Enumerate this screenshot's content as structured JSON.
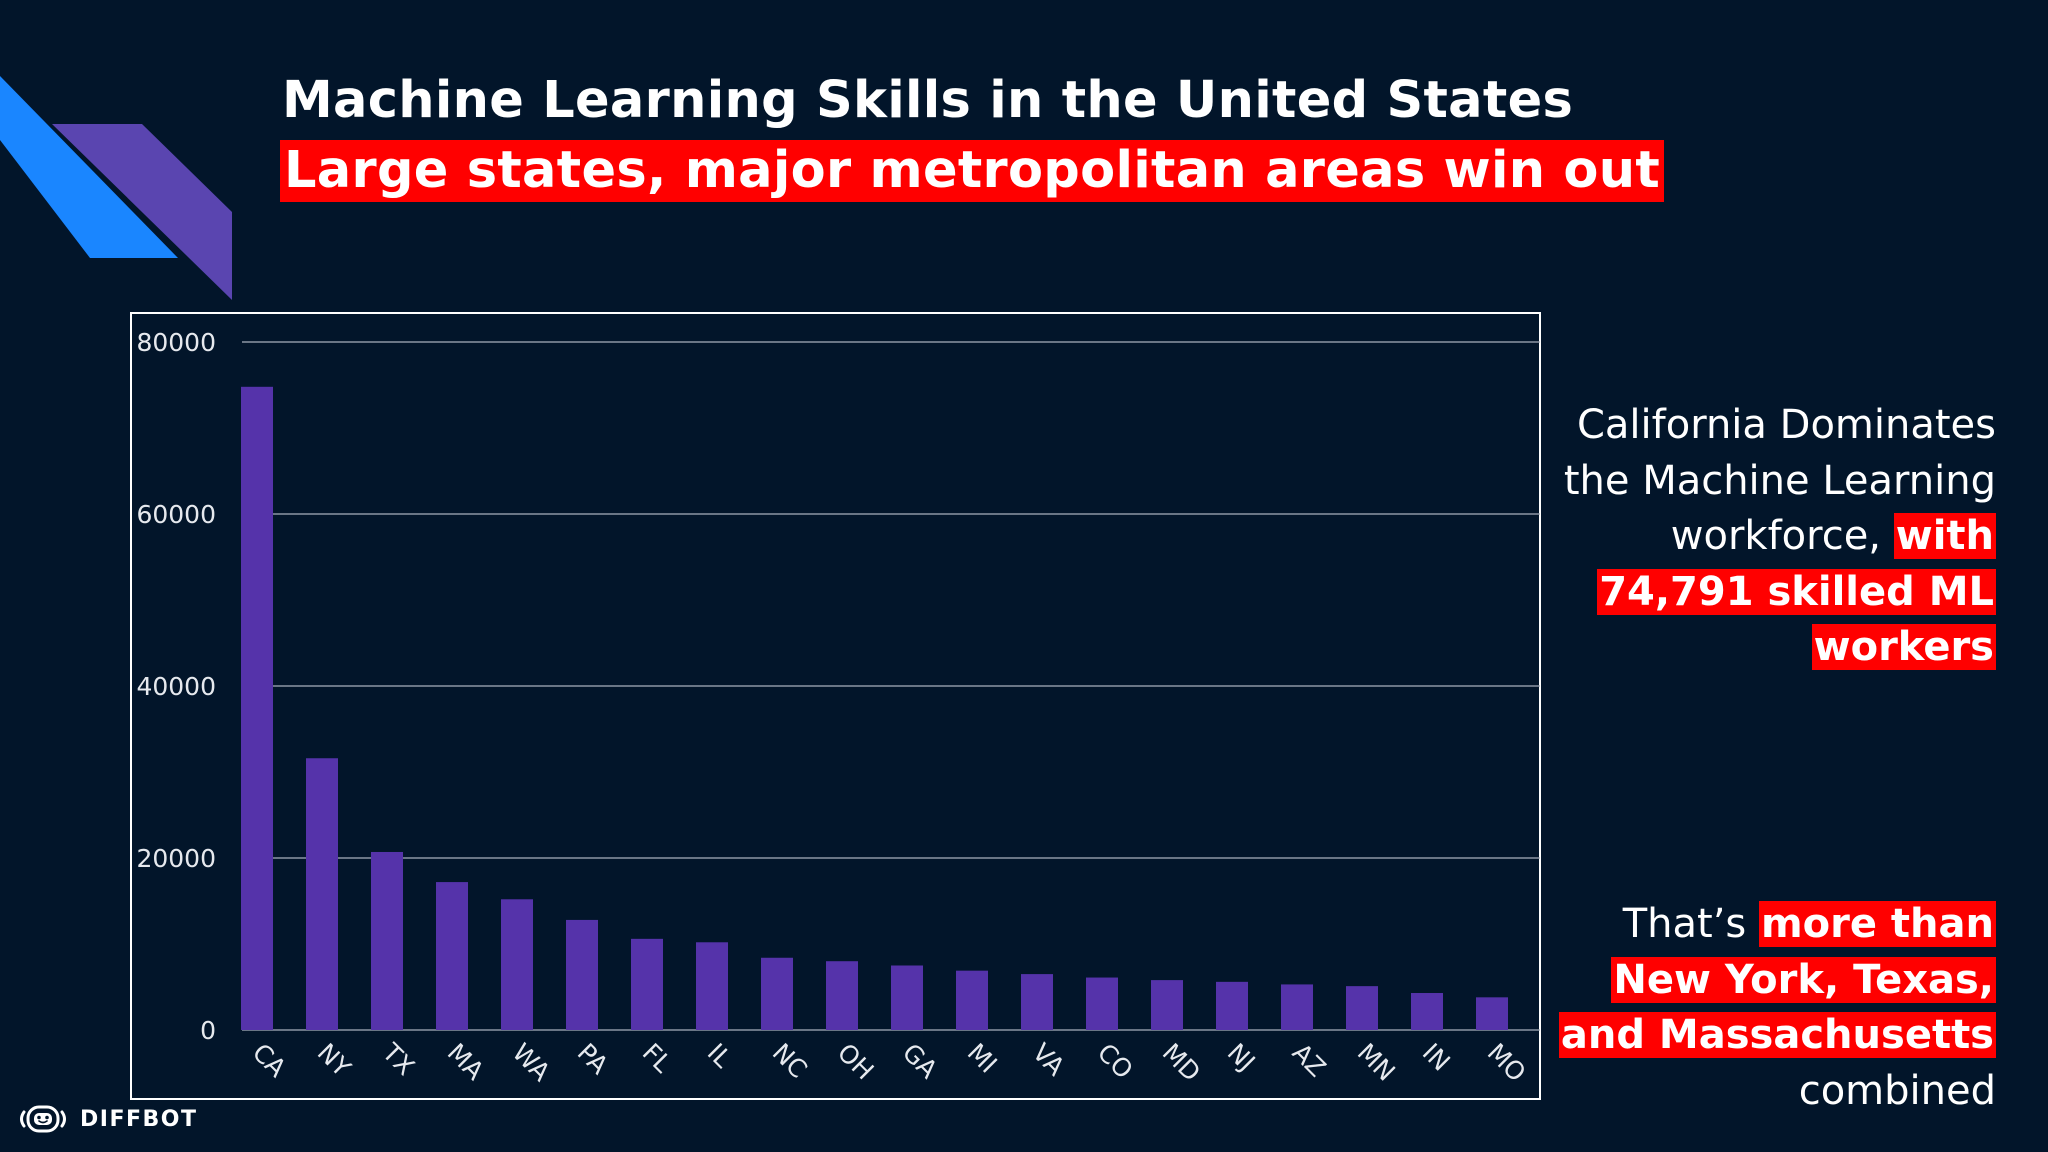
{
  "slide": {
    "title": "Machine Learning Skills in the United States",
    "subtitle": "Large states, major metropolitan areas win out",
    "callout_1": {
      "text": "California Dominates the Machine Learning workforce, ",
      "highlight": "with 74,791 skilled ML workers"
    },
    "callout_2": {
      "text_before": "That’s ",
      "highlight": "more than New York, Texas, and Massachusetts",
      "text_after": " combined"
    },
    "brand": {
      "name": "DIFFBOT",
      "logo_icon": "robot-face-icon"
    },
    "colors": {
      "background": "#02152a",
      "bar": "#5533aa",
      "highlight": "#ff0000",
      "accent_blue": "#1a86ff",
      "accent_purple": "#5a45b0"
    }
  },
  "chart_data": {
    "type": "bar",
    "title": "",
    "xlabel": "",
    "ylabel": "",
    "ylim": [
      0,
      80000
    ],
    "yticks": [
      0,
      20000,
      40000,
      60000,
      80000
    ],
    "grid": true,
    "categories": [
      "CA",
      "NY",
      "TX",
      "MA",
      "WA",
      "PA",
      "FL",
      "IL",
      "NC",
      "OH",
      "GA",
      "MI",
      "VA",
      "CO",
      "MD",
      "NJ",
      "AZ",
      "MN",
      "IN",
      "MO"
    ],
    "values": [
      74791,
      31600,
      20700,
      17200,
      15200,
      12800,
      10600,
      10200,
      8400,
      8000,
      7500,
      6900,
      6500,
      6100,
      5800,
      5600,
      5300,
      5100,
      4300,
      3800
    ]
  }
}
